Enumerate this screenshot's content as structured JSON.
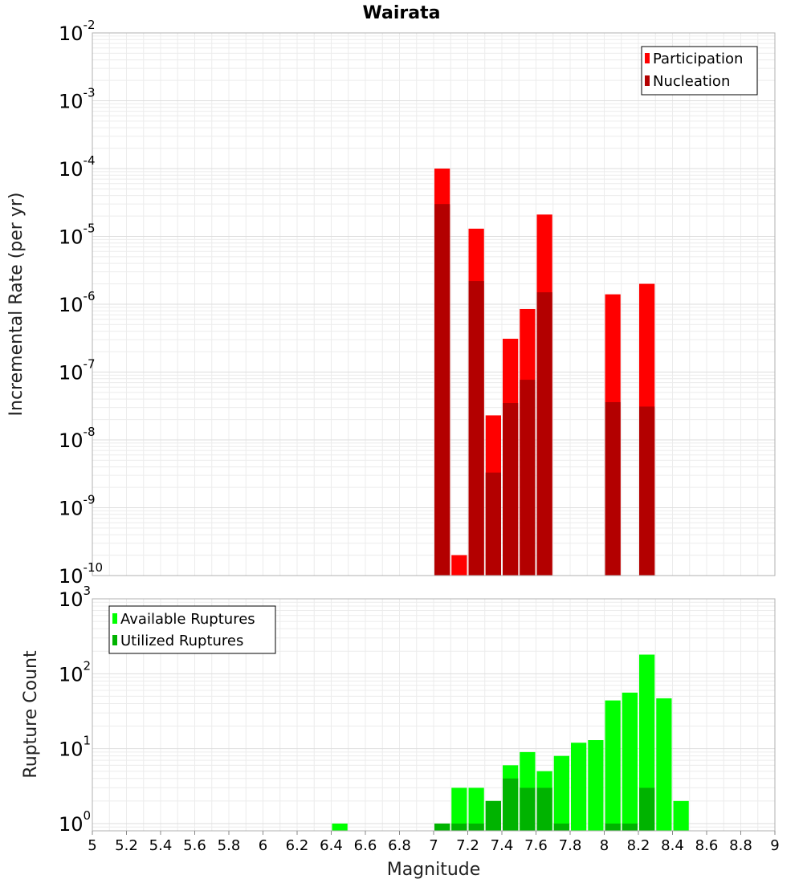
{
  "chart_data": [
    {
      "type": "bar",
      "title": "Wairata",
      "ylabel": "Incremental Rate (per yr)",
      "yscale": "log",
      "ylim": [
        1e-10,
        0.01
      ],
      "xlim": [
        5,
        9
      ],
      "bin_width": 0.1,
      "grid": true,
      "legend": "top-right",
      "series": [
        {
          "name": "Participation",
          "color": "#ff0000",
          "x": [
            7.05,
            7.15,
            7.25,
            7.35,
            7.45,
            7.55,
            7.65,
            8.05,
            8.25
          ],
          "values": [
            0.0001,
            2e-10,
            1.3e-05,
            2.3e-08,
            3.1e-07,
            8.5e-07,
            2.1e-05,
            1.4e-06,
            2e-06
          ]
        },
        {
          "name": "Nucleation",
          "color": "#b30000",
          "x": [
            7.05,
            7.25,
            7.35,
            7.45,
            7.55,
            7.65,
            8.05,
            8.25
          ],
          "values": [
            3e-05,
            2.2e-06,
            3.3e-09,
            3.5e-08,
            7.7e-08,
            1.5e-06,
            3.6e-08,
            3.1e-08
          ]
        }
      ]
    },
    {
      "type": "bar",
      "ylabel": "Rupture Count",
      "xlabel": "Magnitude",
      "yscale": "log",
      "ylim": [
        0.8,
        1000
      ],
      "xlim": [
        5,
        9
      ],
      "bin_width": 0.1,
      "grid": true,
      "legend": "top-left",
      "xticks": [
        "5",
        "5.2",
        "5.4",
        "5.6",
        "5.8",
        "6",
        "6.2",
        "6.4",
        "6.6",
        "6.8",
        "7",
        "7.2",
        "7.4",
        "7.6",
        "7.8",
        "8",
        "8.2",
        "8.4",
        "8.6",
        "8.8",
        "9"
      ],
      "series": [
        {
          "name": "Available Ruptures",
          "color": "#00ff00",
          "x": [
            6.45,
            7.05,
            7.15,
            7.25,
            7.35,
            7.45,
            7.55,
            7.65,
            7.75,
            7.85,
            7.95,
            8.05,
            8.15,
            8.25,
            8.35,
            8.45
          ],
          "values": [
            1,
            1,
            3,
            3,
            2,
            6,
            9,
            5,
            8,
            12,
            13,
            44,
            56,
            180,
            47,
            2
          ]
        },
        {
          "name": "Utilized Ruptures",
          "color": "#00b300",
          "x": [
            7.05,
            7.15,
            7.25,
            7.35,
            7.45,
            7.55,
            7.65,
            7.75,
            8.05,
            8.15,
            8.25
          ],
          "values": [
            1,
            1,
            1,
            2,
            4,
            3,
            3,
            1,
            1,
            1,
            3
          ]
        }
      ]
    }
  ]
}
